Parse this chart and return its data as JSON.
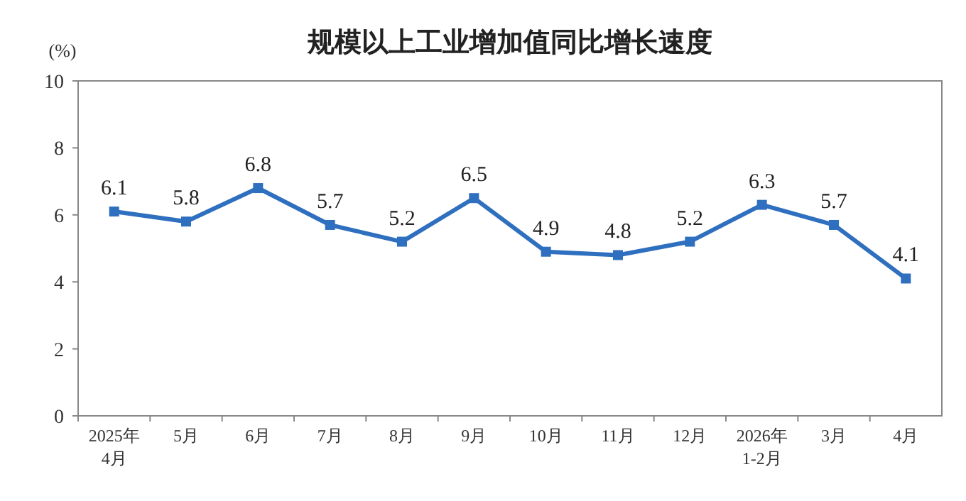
{
  "chart_data": {
    "type": "line",
    "title": "规模以上工业增加值同比增长速度",
    "ylabel": "(%)",
    "categories": [
      "2025年\n4月",
      "5月",
      "6月",
      "7月",
      "8月",
      "9月",
      "10月",
      "11月",
      "12月",
      "2026年\n1-2月",
      "3月",
      "4月"
    ],
    "series": [
      {
        "color": "#2f6fbf",
        "values": [
          6.1,
          5.8,
          6.8,
          5.7,
          5.2,
          6.5,
          4.9,
          4.8,
          5.2,
          6.3,
          5.7,
          4.1
        ]
      }
    ],
    "ylim": [
      0,
      10
    ],
    "yticks": [
      0,
      2,
      4,
      6,
      8,
      10
    ],
    "marker": "square",
    "line_style": "solid",
    "data_labels": true,
    "grid": false
  }
}
